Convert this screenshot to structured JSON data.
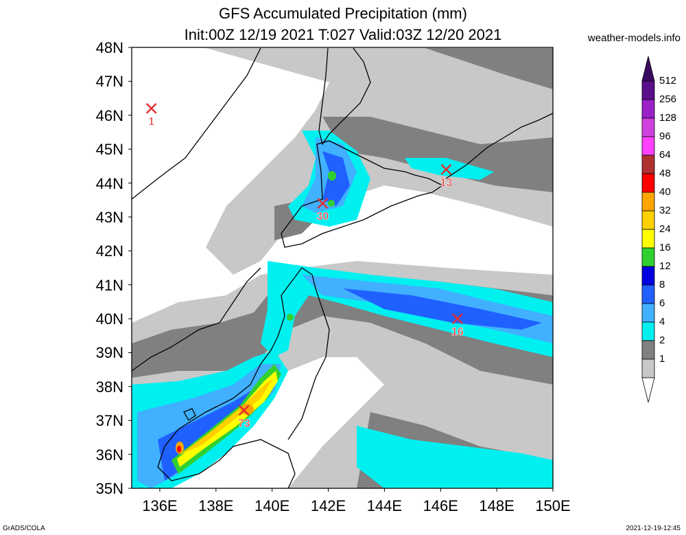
{
  "title": {
    "line1": "GFS Accumulated Precipitation (mm)",
    "line2": "Init:00Z 12/19 2021 T:027 Valid:03Z 12/20 2021"
  },
  "site": "weather-models.info",
  "footer": {
    "left": "GrADS/COLA",
    "right": "2021-12-19-12:45"
  },
  "axes": {
    "lat_labels": [
      "48N",
      "47N",
      "46N",
      "45N",
      "44N",
      "43N",
      "42N",
      "41N",
      "40N",
      "39N",
      "38N",
      "37N",
      "36N",
      "35N"
    ],
    "lon_labels": [
      "136E",
      "138E",
      "140E",
      "142E",
      "144E",
      "146E",
      "148E",
      "150E"
    ],
    "lat_range": [
      35,
      48
    ],
    "lon_range": [
      135,
      150
    ]
  },
  "colorbar": {
    "levels": [
      "512",
      "256",
      "128",
      "96",
      "64",
      "48",
      "40",
      "32",
      "24",
      "16",
      "12",
      "8",
      "6",
      "4",
      "2",
      "1"
    ],
    "colors": [
      "#5a0e8a",
      "#9a20c8",
      "#d040e0",
      "#ff40ff",
      "#b03030",
      "#ff0000",
      "#ffa500",
      "#ffd000",
      "#ffff00",
      "#30d030",
      "#0000e0",
      "#2060ff",
      "#40b0ff",
      "#00f0f0",
      "#808080",
      "#c8c8c8"
    ]
  },
  "markers": [
    {
      "label": "1",
      "lon": 135.7,
      "lat": 46.2
    },
    {
      "label": "13",
      "lon": 146.2,
      "lat": 44.4
    },
    {
      "label": "30",
      "lon": 141.8,
      "lat": 43.4
    },
    {
      "label": "16",
      "lon": 146.6,
      "lat": 40.0
    },
    {
      "label": "73",
      "lon": 139.0,
      "lat": 37.3
    }
  ]
}
